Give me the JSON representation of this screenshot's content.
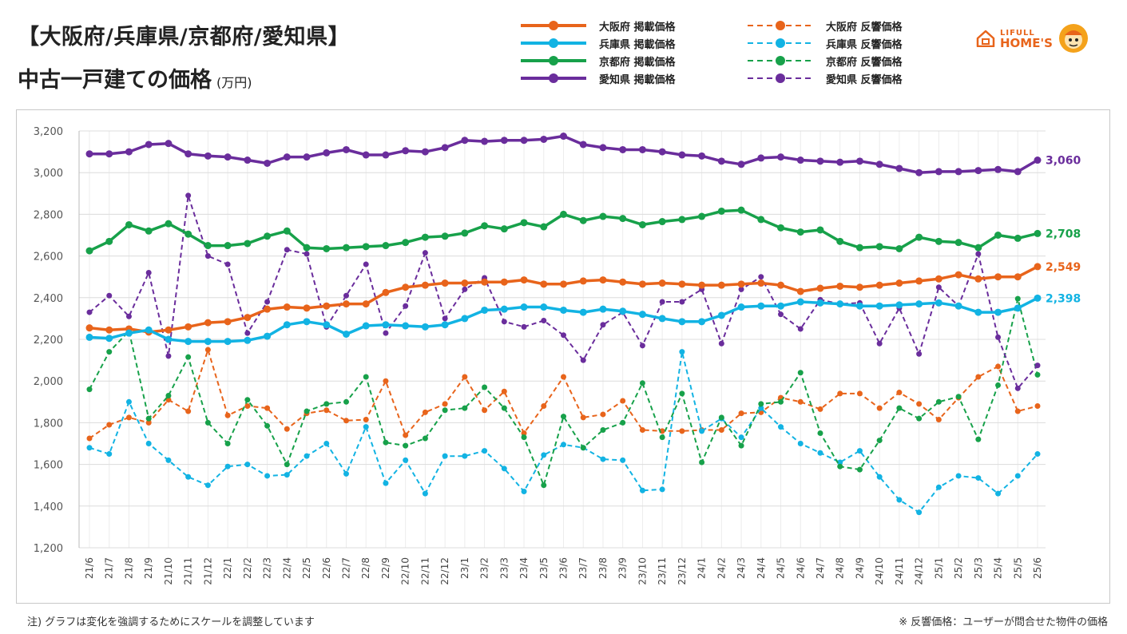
{
  "title_line1": "【大阪府/兵庫県/京都府/愛知県】",
  "title_line2": "中古一戸建ての価格",
  "title_unit": "(万円)",
  "note_left": "注) グラフは変化を強調するためにスケールを調整しています",
  "note_right": "※ 反響価格：ユーザーが問合せた物件の価格",
  "logo": {
    "line1": "LIFULL",
    "line2": "HOME'S",
    "color": "#e8641b"
  },
  "legend": [
    {
      "label": "大阪府 掲載価格",
      "color": "#e8641b",
      "style": "solid"
    },
    {
      "label": "兵庫県 掲載価格",
      "color": "#12b3e3",
      "style": "solid"
    },
    {
      "label": "京都府 掲載価格",
      "color": "#17a14a",
      "style": "solid"
    },
    {
      "label": "愛知県 掲載価格",
      "color": "#6a2d9c",
      "style": "solid"
    },
    {
      "label": "大阪府 反響価格",
      "color": "#e8641b",
      "style": "dashed"
    },
    {
      "label": "兵庫県 反響価格",
      "color": "#12b3e3",
      "style": "dashed"
    },
    {
      "label": "京都府 反響価格",
      "color": "#17a14a",
      "style": "dashed"
    },
    {
      "label": "愛知県 反響価格",
      "color": "#6a2d9c",
      "style": "dashed"
    }
  ],
  "chart_data": {
    "type": "line",
    "title": "中古一戸建ての価格",
    "ylabel": "",
    "xlabel": "",
    "ylim": [
      1200,
      3200
    ],
    "yticks": [
      1200,
      1400,
      1600,
      1800,
      2000,
      2200,
      2400,
      2600,
      2800,
      3000,
      3200
    ],
    "ytick_labels": [
      "1,200",
      "1,400",
      "1,600",
      "1,800",
      "2,000",
      "2,200",
      "2,400",
      "2,600",
      "2,800",
      "3,000",
      "3,200"
    ],
    "grid": true,
    "categories": [
      "21/6",
      "21/7",
      "21/8",
      "21/9",
      "21/10",
      "21/11",
      "21/12",
      "22/1",
      "22/2",
      "22/3",
      "22/4",
      "22/5",
      "22/6",
      "22/7",
      "22/8",
      "22/9",
      "22/10",
      "22/11",
      "22/12",
      "23/1",
      "23/2",
      "23/3",
      "23/4",
      "23/5",
      "23/6",
      "23/7",
      "23/8",
      "23/9",
      "23/10",
      "23/11",
      "23/12",
      "24/1",
      "24/2",
      "24/3",
      "24/4",
      "24/5",
      "24/6",
      "24/7",
      "24/8",
      "24/9",
      "24/10",
      "24/11",
      "24/12",
      "25/1",
      "25/2",
      "25/3",
      "25/4",
      "25/5",
      "25/6"
    ],
    "series": [
      {
        "name": "大阪府 掲載価格",
        "color": "#e8641b",
        "style": "solid",
        "end_label": "2,549",
        "values": [
          2255,
          2245,
          2250,
          2235,
          2245,
          2260,
          2280,
          2285,
          2305,
          2345,
          2355,
          2350,
          2360,
          2370,
          2370,
          2425,
          2450,
          2460,
          2470,
          2470,
          2475,
          2475,
          2485,
          2465,
          2465,
          2480,
          2485,
          2475,
          2465,
          2470,
          2465,
          2460,
          2460,
          2465,
          2470,
          2460,
          2430,
          2445,
          2455,
          2450,
          2460,
          2470,
          2480,
          2490,
          2510,
          2490,
          2500,
          2500,
          2549
        ]
      },
      {
        "name": "兵庫県 掲載価格",
        "color": "#12b3e3",
        "style": "solid",
        "end_label": "2,398",
        "values": [
          2210,
          2205,
          2230,
          2245,
          2200,
          2190,
          2190,
          2190,
          2195,
          2215,
          2270,
          2285,
          2270,
          2225,
          2265,
          2270,
          2265,
          2260,
          2270,
          2300,
          2340,
          2345,
          2355,
          2355,
          2340,
          2330,
          2345,
          2335,
          2320,
          2300,
          2285,
          2285,
          2315,
          2355,
          2360,
          2360,
          2380,
          2375,
          2370,
          2360,
          2360,
          2365,
          2370,
          2375,
          2360,
          2330,
          2330,
          2350,
          2398
        ]
      },
      {
        "name": "京都府 掲載価格",
        "color": "#17a14a",
        "style": "solid",
        "end_label": "2,708",
        "values": [
          2625,
          2670,
          2750,
          2720,
          2755,
          2705,
          2650,
          2650,
          2660,
          2695,
          2720,
          2640,
          2635,
          2640,
          2645,
          2650,
          2665,
          2690,
          2695,
          2710,
          2745,
          2730,
          2760,
          2740,
          2800,
          2770,
          2790,
          2780,
          2750,
          2765,
          2775,
          2790,
          2815,
          2820,
          2775,
          2735,
          2715,
          2725,
          2670,
          2640,
          2645,
          2635,
          2690,
          2670,
          2665,
          2640,
          2700,
          2685,
          2708
        ]
      },
      {
        "name": "愛知県 掲載価格",
        "color": "#6a2d9c",
        "style": "solid",
        "end_label": "3,060",
        "values": [
          3090,
          3090,
          3100,
          3135,
          3140,
          3090,
          3080,
          3075,
          3060,
          3045,
          3075,
          3075,
          3095,
          3110,
          3085,
          3085,
          3105,
          3100,
          3120,
          3155,
          3150,
          3155,
          3155,
          3160,
          3175,
          3135,
          3120,
          3110,
          3110,
          3100,
          3085,
          3080,
          3055,
          3040,
          3070,
          3075,
          3060,
          3055,
          3050,
          3055,
          3040,
          3020,
          3000,
          3005,
          3005,
          3010,
          3015,
          3005,
          3060
        ]
      },
      {
        "name": "大阪府 反響価格",
        "color": "#e8641b",
        "style": "dashed",
        "values": [
          1725,
          1790,
          1825,
          1800,
          1910,
          1855,
          2150,
          1835,
          1880,
          1870,
          1770,
          1845,
          1860,
          1810,
          1815,
          2000,
          1740,
          1850,
          1890,
          2020,
          1860,
          1950,
          1750,
          1880,
          2020,
          1825,
          1840,
          1905,
          1765,
          1760,
          1760,
          1765,
          1765,
          1845,
          1850,
          1920,
          1900,
          1865,
          1940,
          1940,
          1870,
          1945,
          1890,
          1815,
          1920,
          2020,
          2070,
          1855,
          1880
        ]
      },
      {
        "name": "兵庫県 反響価格",
        "color": "#12b3e3",
        "style": "dashed",
        "values": [
          1680,
          1650,
          1900,
          1700,
          1620,
          1540,
          1500,
          1590,
          1600,
          1545,
          1550,
          1640,
          1700,
          1555,
          1780,
          1510,
          1620,
          1460,
          1640,
          1640,
          1665,
          1580,
          1470,
          1645,
          1695,
          1680,
          1625,
          1620,
          1475,
          1480,
          2140,
          1760,
          1820,
          1730,
          1870,
          1780,
          1700,
          1655,
          1610,
          1665,
          1540,
          1430,
          1370,
          1490,
          1545,
          1535,
          1460,
          1545,
          1650
        ]
      },
      {
        "name": "京都府 反響価格",
        "color": "#17a14a",
        "style": "dashed",
        "values": [
          1960,
          2140,
          2240,
          1820,
          1930,
          2115,
          1800,
          1700,
          1910,
          1785,
          1600,
          1855,
          1890,
          1900,
          2020,
          1705,
          1690,
          1725,
          1860,
          1870,
          1970,
          1870,
          1730,
          1500,
          1830,
          1680,
          1765,
          1800,
          1990,
          1730,
          1940,
          1610,
          1825,
          1690,
          1890,
          1900,
          2040,
          1750,
          1590,
          1575,
          1715,
          1870,
          1820,
          1900,
          1925,
          1720,
          1980,
          2395,
          2030
        ]
      },
      {
        "name": "愛知県 反響価格",
        "color": "#6a2d9c",
        "style": "dashed",
        "values": [
          2330,
          2410,
          2310,
          2520,
          2120,
          2890,
          2600,
          2560,
          2230,
          2380,
          2630,
          2610,
          2260,
          2410,
          2560,
          2230,
          2360,
          2615,
          2300,
          2440,
          2495,
          2285,
          2260,
          2290,
          2220,
          2100,
          2270,
          2330,
          2170,
          2380,
          2380,
          2440,
          2180,
          2440,
          2500,
          2320,
          2250,
          2390,
          2370,
          2375,
          2180,
          2350,
          2130,
          2450,
          2360,
          2610,
          2210,
          1965,
          2075
        ]
      }
    ]
  }
}
